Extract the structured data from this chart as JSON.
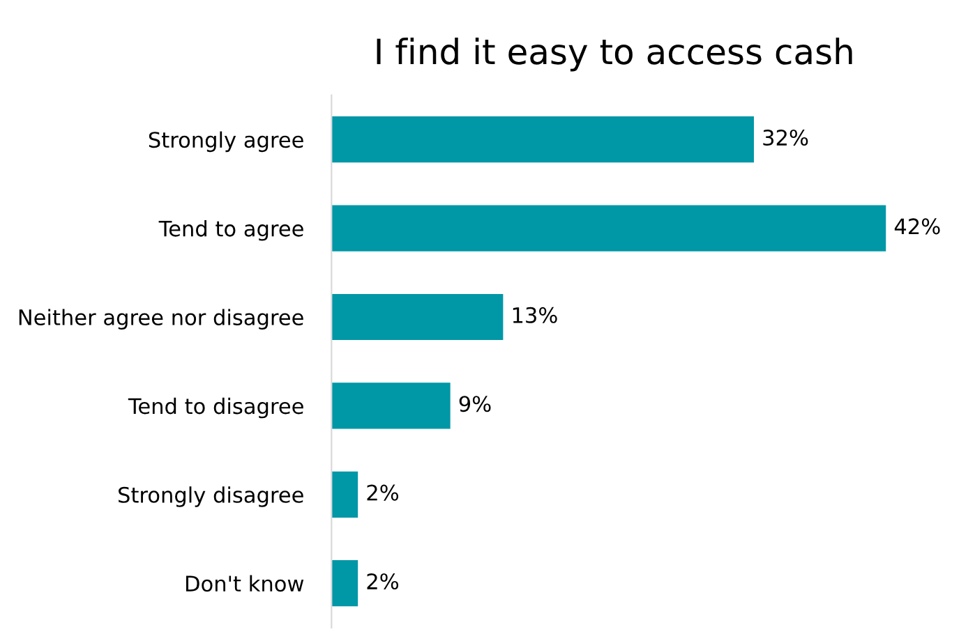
{
  "chart_data": {
    "type": "bar",
    "orientation": "horizontal",
    "title": "I find it easy to access cash",
    "categories": [
      "Strongly agree",
      "Tend to agree",
      "Neither agree nor disagree",
      "Tend to disagree",
      "Strongly disagree",
      "Don't know"
    ],
    "values": [
      32,
      42,
      13,
      9,
      2,
      2
    ],
    "value_labels": [
      "32%",
      "42%",
      "13%",
      "9%",
      "2%",
      "2%"
    ],
    "color": "#0097a7"
  }
}
